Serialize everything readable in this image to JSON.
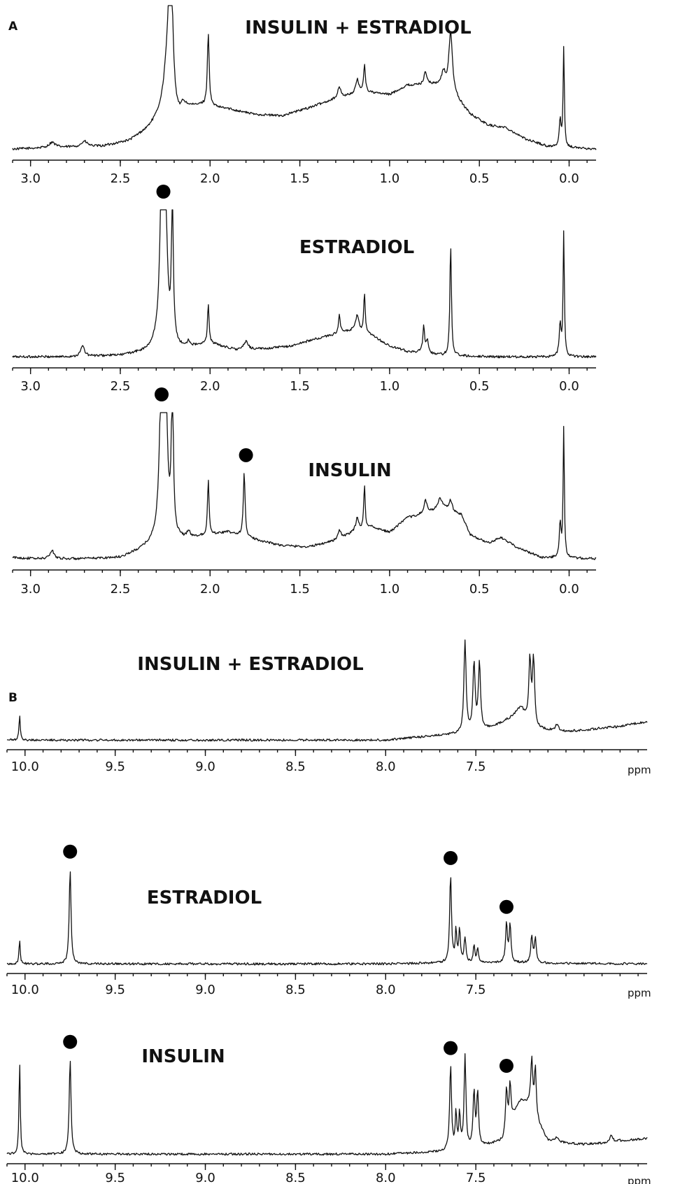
{
  "panels": [
    {
      "label": "A"
    },
    {
      "label": "B"
    }
  ],
  "chart_data": [
    {
      "type": "line",
      "panel": "A",
      "title": "INSULIN + ESTRADIOL",
      "x_range": [
        3.1,
        -0.15
      ],
      "xticks": [
        "3.0",
        "2.5",
        "2.0",
        "1.5",
        "1.0",
        "0.5",
        "0.0"
      ],
      "xtick_values": [
        3.0,
        2.5,
        2.0,
        1.5,
        1.0,
        0.5,
        0.0
      ],
      "unit": "",
      "baseline": 0.02,
      "background": [
        [
          3.1,
          0.02
        ],
        [
          2.9,
          0.03
        ],
        [
          2.6,
          0.04
        ],
        [
          2.45,
          0.08
        ],
        [
          2.35,
          0.16
        ],
        [
          2.3,
          0.22
        ],
        [
          2.25,
          0.3
        ],
        [
          2.2,
          0.02
        ],
        [
          2.15,
          0.3
        ],
        [
          2.05,
          0.34
        ],
        [
          1.9,
          0.32
        ],
        [
          1.75,
          0.28
        ],
        [
          1.6,
          0.27
        ],
        [
          1.45,
          0.33
        ],
        [
          1.3,
          0.4
        ],
        [
          1.15,
          0.45
        ],
        [
          1.0,
          0.43
        ],
        [
          0.9,
          0.5
        ],
        [
          0.75,
          0.5
        ],
        [
          0.65,
          0.43
        ],
        [
          0.55,
          0.28
        ],
        [
          0.45,
          0.2
        ],
        [
          0.35,
          0.18
        ],
        [
          0.25,
          0.1
        ],
        [
          0.12,
          0.04
        ],
        [
          -0.15,
          0.02
        ]
      ],
      "peaks": [
        [
          2.88,
          0.04,
          0.02
        ],
        [
          2.7,
          0.04,
          0.02
        ],
        [
          2.22,
          1.3,
          0.02
        ],
        [
          2.01,
          0.55,
          0.006
        ],
        [
          1.28,
          0.08,
          0.01
        ],
        [
          1.18,
          0.1,
          0.01
        ],
        [
          1.14,
          0.2,
          0.006
        ],
        [
          0.8,
          0.1,
          0.01
        ],
        [
          0.7,
          0.12,
          0.015
        ],
        [
          0.66,
          0.45,
          0.012
        ],
        [
          0.05,
          0.2,
          0.006
        ],
        [
          0.03,
          0.75,
          0.004
        ]
      ],
      "markers": []
    },
    {
      "type": "line",
      "panel": "A",
      "title": "ESTRADIOL",
      "x_range": [
        3.1,
        -0.15
      ],
      "xticks": [
        "3.0",
        "2.5",
        "2.0",
        "1.5",
        "1.0",
        "0.5",
        "0.0"
      ],
      "xtick_values": [
        3.0,
        2.5,
        2.0,
        1.5,
        1.0,
        0.5,
        0.0
      ],
      "unit": "",
      "baseline": 0.02,
      "background": [
        [
          3.1,
          0.02
        ],
        [
          2.8,
          0.02
        ],
        [
          2.5,
          0.03
        ],
        [
          2.35,
          0.06
        ],
        [
          2.3,
          0.1
        ],
        [
          2.15,
          0.08
        ],
        [
          2.0,
          0.12
        ],
        [
          1.85,
          0.07
        ],
        [
          1.7,
          0.08
        ],
        [
          1.55,
          0.1
        ],
        [
          1.45,
          0.14
        ],
        [
          1.3,
          0.19
        ],
        [
          1.2,
          0.22
        ],
        [
          1.1,
          0.18
        ],
        [
          1.0,
          0.1
        ],
        [
          0.9,
          0.06
        ],
        [
          0.8,
          0.05
        ],
        [
          0.7,
          0.03
        ],
        [
          0.4,
          0.02
        ],
        [
          -0.15,
          0.02
        ]
      ],
      "peaks": [
        [
          2.71,
          0.08,
          0.012
        ],
        [
          2.27,
          1.1,
          0.012
        ],
        [
          2.25,
          1.1,
          0.012
        ],
        [
          2.21,
          1.1,
          0.006
        ],
        [
          2.12,
          0.04,
          0.01
        ],
        [
          2.01,
          0.3,
          0.005
        ],
        [
          1.8,
          0.06,
          0.015
        ],
        [
          1.28,
          0.14,
          0.006
        ],
        [
          1.18,
          0.12,
          0.01
        ],
        [
          1.14,
          0.3,
          0.005
        ],
        [
          0.81,
          0.2,
          0.006
        ],
        [
          0.79,
          0.1,
          0.006
        ],
        [
          0.66,
          0.85,
          0.005
        ],
        [
          0.05,
          0.25,
          0.006
        ],
        [
          0.03,
          0.95,
          0.004
        ]
      ],
      "markers": [
        2.26
      ]
    },
    {
      "type": "line",
      "panel": "A",
      "title": "INSULIN",
      "x_range": [
        3.1,
        -0.15
      ],
      "xticks": [
        "3.0",
        "2.5",
        "2.0",
        "1.5",
        "1.0",
        "0.5",
        "0.0"
      ],
      "xtick_values": [
        3.0,
        2.5,
        2.0,
        1.5,
        1.0,
        0.5,
        0.0
      ],
      "unit": "",
      "baseline": 0.02,
      "background": [
        [
          3.1,
          0.03
        ],
        [
          2.95,
          0.02
        ],
        [
          2.7,
          0.02
        ],
        [
          2.5,
          0.03
        ],
        [
          2.4,
          0.08
        ],
        [
          2.3,
          0.14
        ],
        [
          2.15,
          0.16
        ],
        [
          2.0,
          0.2
        ],
        [
          1.9,
          0.22
        ],
        [
          1.8,
          0.18
        ],
        [
          1.6,
          0.12
        ],
        [
          1.45,
          0.11
        ],
        [
          1.3,
          0.16
        ],
        [
          1.2,
          0.22
        ],
        [
          1.1,
          0.26
        ],
        [
          1.0,
          0.22
        ],
        [
          0.9,
          0.33
        ],
        [
          0.8,
          0.36
        ],
        [
          0.7,
          0.4
        ],
        [
          0.6,
          0.35
        ],
        [
          0.55,
          0.2
        ],
        [
          0.45,
          0.14
        ],
        [
          0.38,
          0.18
        ],
        [
          0.28,
          0.1
        ],
        [
          0.15,
          0.03
        ],
        [
          -0.15,
          0.02
        ]
      ],
      "peaks": [
        [
          2.88,
          0.06,
          0.015
        ],
        [
          2.27,
          1.25,
          0.012
        ],
        [
          2.25,
          1.25,
          0.012
        ],
        [
          2.21,
          1.25,
          0.006
        ],
        [
          2.12,
          0.05,
          0.01
        ],
        [
          2.01,
          0.42,
          0.005
        ],
        [
          1.81,
          0.48,
          0.006
        ],
        [
          1.28,
          0.06,
          0.01
        ],
        [
          1.18,
          0.1,
          0.01
        ],
        [
          1.14,
          0.32,
          0.005
        ],
        [
          0.8,
          0.1,
          0.01
        ],
        [
          0.72,
          0.08,
          0.015
        ],
        [
          0.66,
          0.08,
          0.01
        ],
        [
          0.05,
          0.25,
          0.006
        ],
        [
          0.03,
          0.98,
          0.004
        ]
      ],
      "markers": [
        2.27,
        1.8
      ]
    },
    {
      "type": "line",
      "panel": "B",
      "title": "INSULIN + ESTRADIOL",
      "x_range": [
        10.1,
        6.55
      ],
      "xticks": [
        "10.0",
        "9.5",
        "9.0",
        "8.5",
        "8.0",
        "7.5"
      ],
      "xtick_values": [
        10.0,
        9.5,
        9.0,
        8.5,
        8.0,
        7.5
      ],
      "unit": "ppm",
      "baseline": 0.01,
      "background": [
        [
          10.1,
          0.01
        ],
        [
          8.0,
          0.01
        ],
        [
          7.85,
          0.03
        ],
        [
          7.7,
          0.05
        ],
        [
          7.6,
          0.06
        ],
        [
          7.5,
          0.08
        ],
        [
          7.4,
          0.12
        ],
        [
          7.3,
          0.2
        ],
        [
          7.25,
          0.28
        ],
        [
          7.2,
          0.12
        ],
        [
          7.15,
          0.1
        ],
        [
          7.0,
          0.08
        ],
        [
          6.9,
          0.09
        ],
        [
          6.8,
          0.11
        ],
        [
          6.7,
          0.12
        ],
        [
          6.6,
          0.15
        ],
        [
          6.55,
          0.16
        ]
      ],
      "peaks": [
        [
          10.03,
          0.2,
          0.004
        ],
        [
          7.56,
          0.75,
          0.007
        ],
        [
          7.51,
          0.55,
          0.007
        ],
        [
          7.48,
          0.55,
          0.007
        ],
        [
          7.2,
          0.55,
          0.007
        ],
        [
          7.18,
          0.55,
          0.007
        ],
        [
          7.05,
          0.05,
          0.01
        ]
      ],
      "markers": []
    },
    {
      "type": "line",
      "panel": "B",
      "title": "ESTRADIOL",
      "x_range": [
        10.1,
        6.55
      ],
      "xticks": [
        "10.0",
        "9.5",
        "9.0",
        "8.5",
        "8.0",
        "7.5"
      ],
      "xtick_values": [
        10.0,
        9.5,
        9.0,
        8.5,
        8.0,
        7.5
      ],
      "unit": "ppm",
      "baseline": 0.01,
      "background": [
        [
          10.1,
          0.01
        ],
        [
          8.0,
          0.01
        ],
        [
          7.8,
          0.015
        ],
        [
          7.5,
          0.02
        ],
        [
          7.0,
          0.015
        ],
        [
          6.55,
          0.01
        ]
      ],
      "peaks": [
        [
          10.03,
          0.2,
          0.004
        ],
        [
          9.75,
          0.78,
          0.006
        ],
        [
          7.64,
          0.72,
          0.006
        ],
        [
          7.61,
          0.26,
          0.005
        ],
        [
          7.59,
          0.28,
          0.005
        ],
        [
          7.56,
          0.2,
          0.006
        ],
        [
          7.51,
          0.14,
          0.005
        ],
        [
          7.49,
          0.12,
          0.005
        ],
        [
          7.33,
          0.32,
          0.006
        ],
        [
          7.31,
          0.3,
          0.006
        ],
        [
          7.19,
          0.22,
          0.006
        ],
        [
          7.17,
          0.2,
          0.006
        ]
      ],
      "markers": [
        9.75,
        7.64,
        7.33
      ]
    },
    {
      "type": "line",
      "panel": "B",
      "title": "INSULIN",
      "x_range": [
        10.1,
        6.55
      ],
      "xticks": [
        "10.0",
        "9.5",
        "9.0",
        "8.5",
        "8.0",
        "7.5"
      ],
      "xtick_values": [
        10.0,
        9.5,
        9.0,
        8.5,
        8.0,
        7.5
      ],
      "unit": "ppm",
      "baseline": 0.01,
      "background": [
        [
          10.1,
          0.01
        ],
        [
          8.0,
          0.01
        ],
        [
          7.7,
          0.03
        ],
        [
          7.5,
          0.06
        ],
        [
          7.35,
          0.12
        ],
        [
          7.3,
          0.3
        ],
        [
          7.25,
          0.45
        ],
        [
          7.2,
          0.42
        ],
        [
          7.15,
          0.25
        ],
        [
          7.1,
          0.12
        ],
        [
          7.0,
          0.1
        ],
        [
          6.9,
          0.09
        ],
        [
          6.8,
          0.1
        ],
        [
          6.7,
          0.12
        ],
        [
          6.6,
          0.13
        ],
        [
          6.55,
          0.14
        ]
      ],
      "peaks": [
        [
          10.03,
          0.78,
          0.004
        ],
        [
          9.75,
          0.78,
          0.006
        ],
        [
          7.64,
          0.7,
          0.006
        ],
        [
          7.61,
          0.3,
          0.005
        ],
        [
          7.59,
          0.28,
          0.005
        ],
        [
          7.56,
          0.75,
          0.006
        ],
        [
          7.51,
          0.45,
          0.006
        ],
        [
          7.49,
          0.45,
          0.006
        ],
        [
          7.33,
          0.35,
          0.006
        ],
        [
          7.31,
          0.33,
          0.006
        ],
        [
          7.19,
          0.4,
          0.006
        ],
        [
          7.17,
          0.4,
          0.006
        ],
        [
          7.05,
          0.04,
          0.01
        ],
        [
          6.75,
          0.05,
          0.01
        ]
      ],
      "markers": [
        9.75,
        7.64,
        7.33
      ]
    }
  ]
}
